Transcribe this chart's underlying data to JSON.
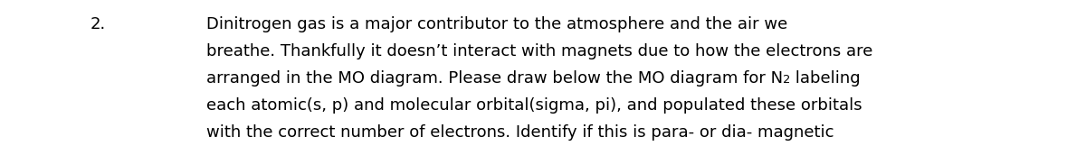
{
  "number": "2.",
  "line1": "Dinitrogen gas is a major contributor to the atmosphere and the air we",
  "line2": "breathe. Thankfully it doesn’t interact with magnets due to how the electrons are",
  "line3_part1": "arranged in the MO diagram. Please draw below the MO diagram for N",
  "line3_sub": "2",
  "line3_part2": " labeling",
  "line4": "each atomic(s, p) and molecular orbital(sigma, pi), and populated these orbitals",
  "line5": "with the correct number of electrons. Identify if this is para- or dia- magnetic",
  "background_color": "#ffffff",
  "text_color": "#000000",
  "font_size": 13.0,
  "number_font_size": 13.0,
  "fig_width": 12.0,
  "fig_height": 1.62,
  "dpi": 100
}
